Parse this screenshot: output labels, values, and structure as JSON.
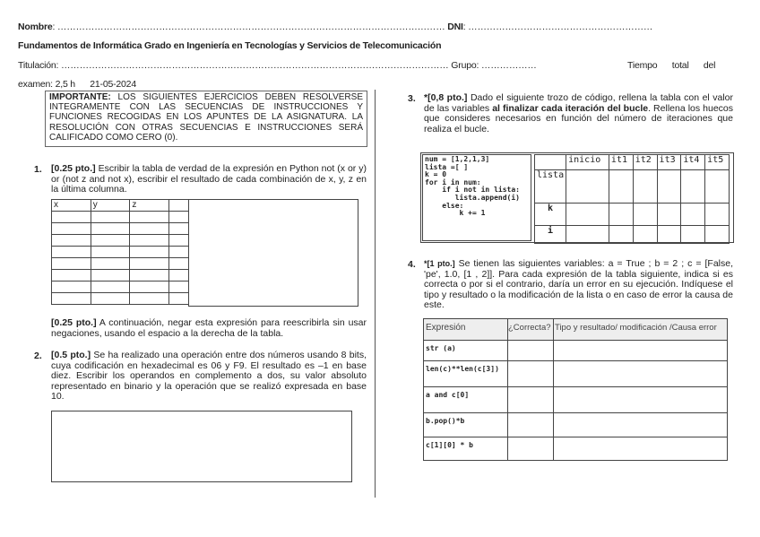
{
  "header": {
    "nombre_label": "Nombre",
    "nombre_dots": ": ……………………………………………………………………………………………………………… ",
    "dni_label": "DNI",
    "dni_dots": ": ……………………………………………………",
    "course": "Fundamentos de Informática Grado en Ingeniería en Tecnologías y Servicios de Telecomunicación",
    "titulacion": "Titulación: ……………………………………………………………………………………………………………… Grupo: ………………",
    "tiempo": "Tiempo      total      del",
    "examen": "examen: 2,5 h      21-05-2024"
  },
  "notice": {
    "bold": "IMPORTANTE:",
    "text": " LOS SIGUIENTES EJERCICIOS DEBEN RESOLVERSE INTEGRAMENTE CON LAS SECUENCIAS DE INSTRUCCIONES Y FUNCIONES RECOGIDAS EN LOS APUNTES DE LA ASIGNATURA. LA RESOLUCIÓN CON OTRAS SECUENCIAS E INSTRUCCIONES SERÁ CALIFICADO COMO CERO (0)."
  },
  "q1": {
    "number": "1.",
    "points": "[0.25 pto.]",
    "text": " Escribir la tabla de verdad de la expresión en Python not (x or y) or (not z and not x), escribir el resultado de cada combinación de x, y, z en la última columna.",
    "columns": [
      "x",
      "y",
      "z",
      ""
    ],
    "part2_points": "[0.25 pto.]",
    "part2_text": " A continuación, negar esta expresión para reescribirla sin usar negaciones, usando el espacio a la derecha de la tabla."
  },
  "q2": {
    "number": "2.",
    "points": "[0.5 pto.]",
    "text": " Se ha realizado una operación entre dos números usando 8 bits, cuya codificación en hexadecimal es 06 y F9. El resultado es –1 en base diez. Escribir los operandos en complemento a dos, su valor absoluto representado en binario y la operación que se realizó expresada en base 10."
  },
  "q3": {
    "number": "3.",
    "points": "*[0,8 pto.]",
    "text1": " Dado el siguiente trozo de código, rellena la tabla con el valor de las variables ",
    "bold": "al finalizar cada iteración del bucle",
    "text2": ". Rellena los huecos que consideres necesarios en función del número de iteraciones que realiza el bucle.",
    "code": [
      "num = [1,2,1,3]",
      "lista =[ ]",
      "k = 0",
      "for i in num:",
      "    if i not in lista:",
      "       lista.append(i)",
      "    else:",
      "        k += 1"
    ],
    "columns": [
      "",
      "inicio",
      "it1",
      "it2",
      "it3",
      "it4",
      "it5"
    ],
    "rows": [
      "lista",
      "k",
      "i"
    ]
  },
  "q4": {
    "number": "4.",
    "points": "*[1 pto.]",
    "text": " Se tienen las siguientes variables: a = True ; b = 2 ; c = [False, 'pe', 1.0, [1 , 2]]. Para cada expresión de la tabla siguiente, indica si es correcta o por si el contrario, daría un error en su ejecución. Indíquese el tipo y resultado o la modificación de la lista o en caso de error la causa de este.",
    "columns": [
      "Expresión",
      "¿Correcta?",
      "Tipo y resultado/ modificación /Causa error"
    ],
    "rows": [
      "str (a)",
      "len(c)**len(c[3])",
      "a and c[0]",
      "b.pop()*b",
      "c[1][0] * b"
    ]
  }
}
